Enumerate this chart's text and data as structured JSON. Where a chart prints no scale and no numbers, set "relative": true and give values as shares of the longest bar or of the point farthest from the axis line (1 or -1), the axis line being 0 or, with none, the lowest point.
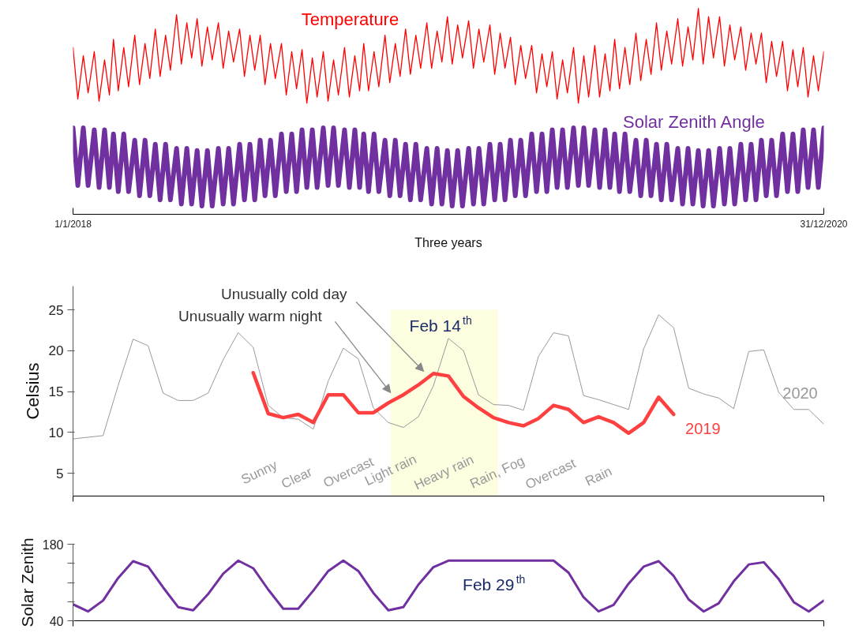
{
  "chart_data": [
    {
      "type": "line",
      "relative": true,
      "xlabel": "Three years",
      "x": [
        "2018-01-01",
        "2018-01-08",
        "2018-01-16",
        "2018-01-23",
        "2018-02-01",
        "2018-02-08",
        "2018-02-16",
        "2018-02-23",
        "2018-03-01",
        "2018-03-08",
        "2018-03-16",
        "2018-03-23",
        "2018-04-01",
        "2018-04-08",
        "2018-04-16",
        "2018-04-23",
        "2018-05-01",
        "2018-05-08",
        "2018-05-16",
        "2018-05-23",
        "2018-06-01",
        "2018-06-08",
        "2018-06-16",
        "2018-06-23",
        "2018-07-01",
        "2018-07-08",
        "2018-07-16",
        "2018-07-23",
        "2018-08-01",
        "2018-08-08",
        "2018-08-16",
        "2018-08-23",
        "2018-09-01",
        "2018-09-08",
        "2018-09-16",
        "2018-09-23",
        "2018-10-01",
        "2018-10-08",
        "2018-10-16",
        "2018-10-23",
        "2018-11-01",
        "2018-11-08",
        "2018-11-16",
        "2018-11-23",
        "2018-12-01",
        "2018-12-08",
        "2018-12-16",
        "2018-12-23",
        "2019-01-01",
        "2019-01-08",
        "2019-01-16",
        "2019-01-23",
        "2019-02-01",
        "2019-02-08",
        "2019-02-16",
        "2019-02-23",
        "2019-03-01",
        "2019-03-08",
        "2019-03-16",
        "2019-03-23",
        "2019-04-01",
        "2019-04-08",
        "2019-04-16",
        "2019-04-23",
        "2019-05-01",
        "2019-05-08",
        "2019-05-16",
        "2019-05-23",
        "2019-06-01",
        "2019-06-08",
        "2019-06-16",
        "2019-06-23",
        "2019-07-01",
        "2019-07-08",
        "2019-07-16",
        "2019-07-23",
        "2019-08-01",
        "2019-08-08",
        "2019-08-16",
        "2019-08-23",
        "2019-09-01",
        "2019-09-08",
        "2019-09-16",
        "2019-09-23",
        "2019-10-01",
        "2019-10-08",
        "2019-10-16",
        "2019-10-23",
        "2019-11-01",
        "2019-11-08",
        "2019-11-16",
        "2019-11-23",
        "2019-12-01",
        "2019-12-08",
        "2019-12-16",
        "2019-12-23",
        "2020-01-01",
        "2020-01-08",
        "2020-01-16",
        "2020-01-23",
        "2020-02-01",
        "2020-02-08",
        "2020-02-16",
        "2020-02-23",
        "2020-03-01",
        "2020-03-08",
        "2020-03-16",
        "2020-03-23",
        "2020-04-01",
        "2020-04-08",
        "2020-04-16",
        "2020-04-23",
        "2020-05-01",
        "2020-05-08",
        "2020-05-16",
        "2020-05-23",
        "2020-06-01",
        "2020-06-08",
        "2020-06-16",
        "2020-06-23",
        "2020-07-01",
        "2020-07-08",
        "2020-07-16",
        "2020-07-23",
        "2020-08-01",
        "2020-08-08",
        "2020-08-16",
        "2020-08-23",
        "2020-09-01",
        "2020-09-08",
        "2020-09-16",
        "2020-09-23",
        "2020-10-01",
        "2020-10-08",
        "2020-10-16",
        "2020-10-23",
        "2020-11-01",
        "2020-11-08",
        "2020-11-16",
        "2020-11-23",
        "2020-12-01",
        "2020-12-08",
        "2020-12-16",
        "2020-12-23",
        "2020-12-31"
      ],
      "xlim": [
        "2018-01-01",
        "2020-12-31"
      ],
      "xticks": [
        {
          "value": "2018-01-01",
          "label": "1/1/2018"
        },
        {
          "value": "2020-12-31",
          "label": "31/12/2020"
        }
      ],
      "series": [
        {
          "name": "Temperature",
          "color": "#ff0000",
          "values": [
            0.81,
            0.56,
            0.77,
            0.59,
            0.79,
            0.55,
            0.75,
            0.58,
            0.85,
            0.6,
            0.81,
            0.62,
            0.87,
            0.63,
            0.83,
            0.66,
            0.9,
            0.67,
            0.87,
            0.7,
            0.97,
            0.73,
            0.93,
            0.76,
            0.95,
            0.72,
            0.91,
            0.75,
            0.93,
            0.71,
            0.89,
            0.74,
            0.9,
            0.67,
            0.87,
            0.7,
            0.87,
            0.63,
            0.83,
            0.66,
            0.83,
            0.58,
            0.79,
            0.61,
            0.8,
            0.54,
            0.76,
            0.57,
            0.79,
            0.55,
            0.75,
            0.58,
            0.81,
            0.57,
            0.77,
            0.6,
            0.83,
            0.6,
            0.79,
            0.62,
            0.87,
            0.64,
            0.83,
            0.67,
            0.9,
            0.68,
            0.87,
            0.71,
            0.93,
            0.71,
            0.89,
            0.74,
            0.96,
            0.73,
            0.92,
            0.76,
            0.94,
            0.71,
            0.9,
            0.74,
            0.92,
            0.68,
            0.88,
            0.71,
            0.86,
            0.63,
            0.82,
            0.66,
            0.82,
            0.59,
            0.78,
            0.62,
            0.79,
            0.56,
            0.75,
            0.59,
            0.81,
            0.54,
            0.77,
            0.57,
            0.82,
            0.57,
            0.78,
            0.6,
            0.85,
            0.61,
            0.81,
            0.63,
            0.88,
            0.65,
            0.85,
            0.68,
            0.93,
            0.7,
            0.89,
            0.73,
            0.95,
            0.72,
            0.91,
            0.75,
            1.0,
            0.73,
            0.96,
            0.76,
            0.96,
            0.72,
            0.92,
            0.75,
            0.91,
            0.7,
            0.88,
            0.73,
            0.88,
            0.64,
            0.84,
            0.67,
            0.84,
            0.6,
            0.8,
            0.62,
            0.81,
            0.57,
            0.77,
            0.6,
            0.79
          ]
        },
        {
          "name": "Solar Zenith Angle",
          "color": "#7030a0",
          "values": [
            0.42,
            0.14,
            0.42,
            0.14,
            0.41,
            0.13,
            0.41,
            0.13,
            0.39,
            0.11,
            0.39,
            0.11,
            0.36,
            0.09,
            0.36,
            0.09,
            0.34,
            0.07,
            0.34,
            0.07,
            0.32,
            0.05,
            0.32,
            0.05,
            0.31,
            0.04,
            0.31,
            0.04,
            0.32,
            0.05,
            0.32,
            0.05,
            0.34,
            0.07,
            0.34,
            0.07,
            0.36,
            0.09,
            0.36,
            0.09,
            0.39,
            0.11,
            0.39,
            0.11,
            0.41,
            0.13,
            0.41,
            0.13,
            0.42,
            0.14,
            0.42,
            0.14,
            0.41,
            0.13,
            0.41,
            0.13,
            0.39,
            0.11,
            0.39,
            0.11,
            0.36,
            0.09,
            0.36,
            0.09,
            0.34,
            0.07,
            0.34,
            0.07,
            0.32,
            0.05,
            0.32,
            0.05,
            0.31,
            0.04,
            0.31,
            0.04,
            0.32,
            0.05,
            0.32,
            0.05,
            0.34,
            0.07,
            0.34,
            0.07,
            0.36,
            0.09,
            0.36,
            0.09,
            0.39,
            0.11,
            0.39,
            0.11,
            0.41,
            0.13,
            0.41,
            0.13,
            0.42,
            0.14,
            0.42,
            0.14,
            0.41,
            0.13,
            0.41,
            0.13,
            0.39,
            0.11,
            0.39,
            0.11,
            0.36,
            0.09,
            0.36,
            0.09,
            0.34,
            0.07,
            0.34,
            0.07,
            0.32,
            0.05,
            0.32,
            0.05,
            0.31,
            0.04,
            0.31,
            0.04,
            0.32,
            0.05,
            0.32,
            0.05,
            0.34,
            0.07,
            0.34,
            0.07,
            0.36,
            0.09,
            0.36,
            0.09,
            0.39,
            0.11,
            0.39,
            0.11,
            0.41,
            0.13,
            0.41,
            0.13,
            0.42
          ]
        }
      ]
    },
    {
      "type": "line",
      "ylabel": "Celsius",
      "ylim": [
        2.2,
        27.9
      ],
      "yticks": [
        5,
        10,
        15,
        20,
        25
      ],
      "tick_labels": "y",
      "categories": [
        null,
        null,
        null,
        null,
        null,
        null,
        null,
        null,
        null,
        null,
        null,
        null,
        null,
        null,
        null,
        null,
        null,
        null,
        null,
        null,
        null,
        null,
        null,
        null,
        null,
        null,
        null,
        null,
        null,
        null,
        null,
        null,
        null,
        null,
        null,
        null,
        null,
        null,
        null,
        null,
        null,
        null,
        null,
        null,
        null,
        null,
        null,
        null,
        null,
        null,
        null
      ],
      "series": [
        {
          "name": "2020",
          "color": "#999999",
          "values": [
            9.2,
            9.4,
            9.6,
            15.7,
            21.4,
            20.6,
            14.8,
            13.9,
            13.9,
            14.8,
            18.9,
            22.2,
            20.4,
            13.3,
            11.8,
            11.6,
            10.4,
            16.3,
            20.3,
            19.0,
            13.0,
            11.2,
            10.6,
            11.9,
            15.7,
            21.5,
            20.0,
            14.6,
            13.4,
            13.3,
            12.7,
            19.3,
            22.2,
            21.8,
            14.5,
            14.0,
            13.4,
            12.8,
            20.2,
            24.4,
            22.8,
            15.4,
            14.7,
            14.2,
            12.9,
            19.9,
            20.1,
            14.9,
            12.8,
            12.8,
            11.0
          ]
        },
        {
          "name": "2019",
          "color": "#ff4040",
          "values": [
            null,
            null,
            null,
            null,
            null,
            null,
            null,
            null,
            null,
            null,
            null,
            null,
            17.3,
            12.3,
            11.8,
            12.2,
            11.2,
            14.6,
            14.6,
            12.4,
            12.4,
            13.6,
            14.6,
            15.8,
            17.2,
            16.9,
            14.4,
            13.0,
            11.8,
            11.2,
            10.8,
            11.7,
            13.3,
            12.8,
            11.2,
            11.9,
            11.2,
            9.9,
            11.2,
            14.3,
            12.2,
            null,
            null,
            null,
            null,
            null,
            null,
            null,
            null,
            null,
            null
          ]
        }
      ],
      "annotations": [
        "Unusually cold day",
        "Unusually warm night",
        "Feb 14$^{th}$",
        "Sunny",
        "Clear",
        "Overcast",
        "Light rain",
        "Heavy rain",
        "Rain, Fog",
        "Overcast",
        "Rain"
      ]
    },
    {
      "type": "line",
      "ylabel": "Solar Zenith",
      "ylim": [
        40,
        180
      ],
      "yticks": [
        40,
        {
          "value": 75,
          "label": null
        },
        {
          "value": 110,
          "label": null
        },
        {
          "value": 145,
          "label": null
        },
        180
      ],
      "tick_labels": "y",
      "categories": [
        null,
        null,
        null,
        null,
        null,
        null,
        null,
        null,
        null,
        null,
        null,
        null,
        null,
        null,
        null,
        null,
        null,
        null,
        null,
        null,
        null,
        null,
        null,
        null,
        null,
        null,
        null,
        null,
        null,
        null,
        null,
        null,
        null,
        null,
        null,
        null,
        null,
        null,
        null,
        null,
        null,
        null,
        null,
        null,
        null,
        null,
        null,
        null,
        null,
        null,
        null
      ],
      "series": [
        {
          "color": "#7030a0",
          "values": [
            70,
            57,
            77,
            118,
            149,
            139,
            101,
            65,
            59,
            89,
            126,
            150,
            136,
            97,
            62,
            62,
            95,
            131,
            150,
            131,
            91,
            59,
            65,
            106,
            138,
            150,
            150,
            150,
            150,
            150,
            150,
            150,
            150,
            128,
            83,
            57,
            69,
            108,
            139,
            149,
            122,
            79,
            57,
            72,
            112,
            143,
            147,
            116,
            74,
            57,
            77
          ]
        }
      ],
      "annotations": [
        "Feb 29$^{th}$"
      ]
    }
  ]
}
